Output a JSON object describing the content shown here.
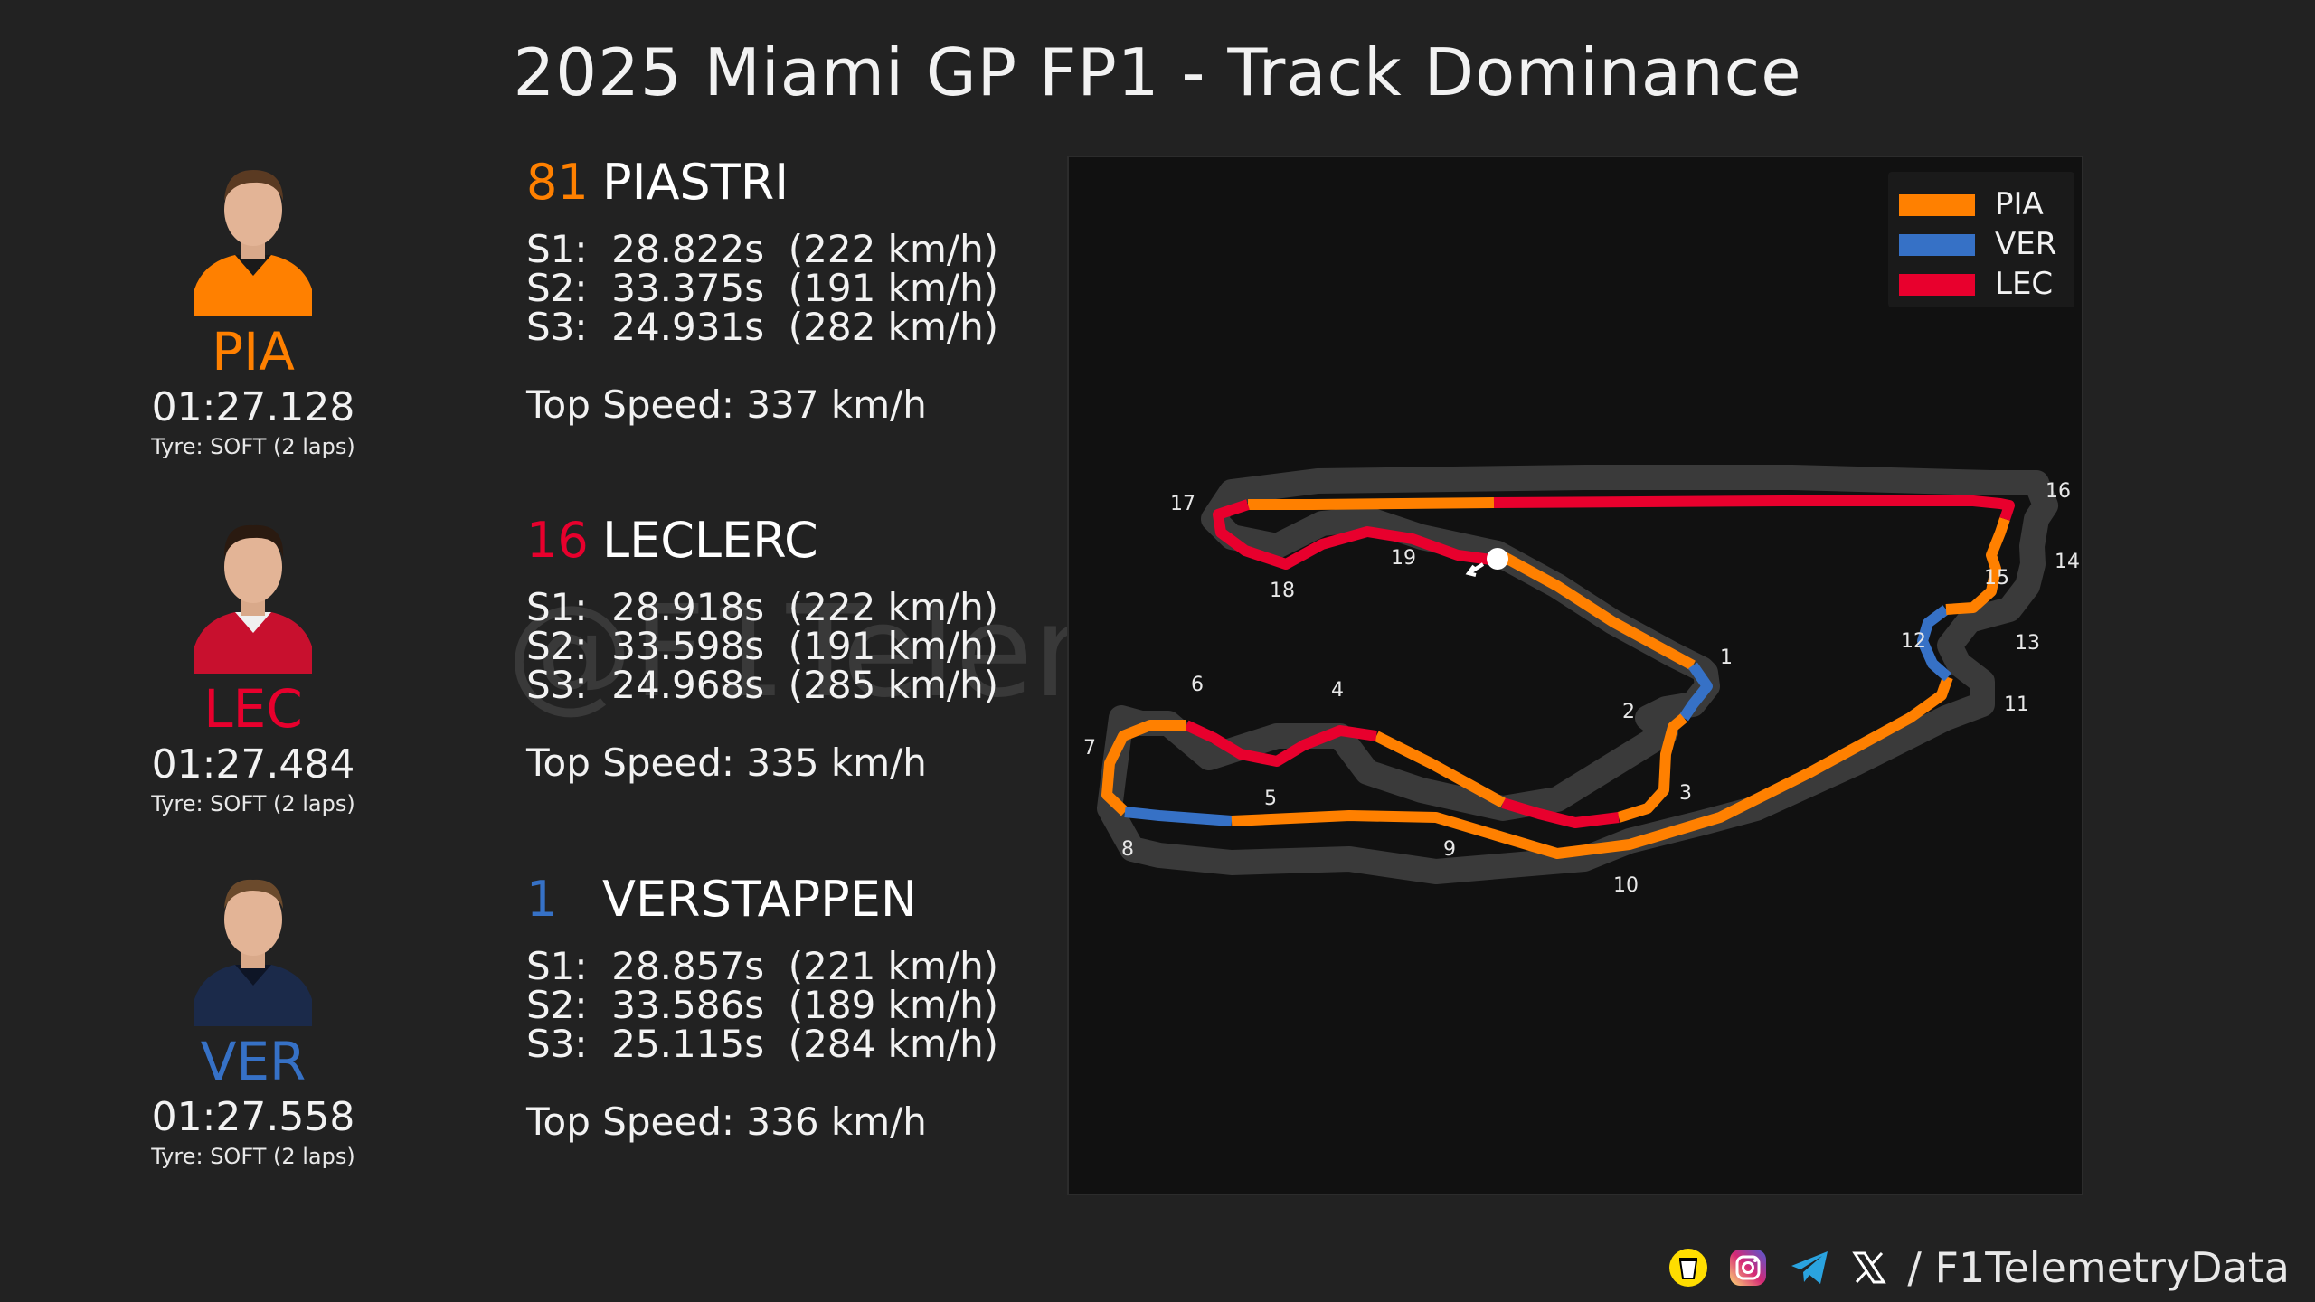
{
  "title": "2025 Miami GP FP1 - Track Dominance",
  "watermark": "@F1TelemetryData",
  "colors": {
    "PIA": "#ff8000",
    "VER": "#3671c6",
    "LEC": "#e8002d",
    "background": "#222222",
    "map_bg": "#111111"
  },
  "drivers": [
    {
      "abbr": "PIA",
      "number": "81",
      "name": "PIASTRI",
      "color": "#ff8000",
      "lap_time": "01:27.128",
      "tyre": "Tyre: SOFT (2 laps)",
      "sectors": [
        "S1:  28.822s  (222 km/h)",
        "S2:  33.375s  (191 km/h)",
        "S3:  24.931s  (282 km/h)"
      ],
      "top_speed": "Top Speed: 337 km/h"
    },
    {
      "abbr": "LEC",
      "number": "16",
      "name": "LECLERC",
      "color": "#e8002d",
      "lap_time": "01:27.484",
      "tyre": "Tyre: SOFT (2 laps)",
      "sectors": [
        "S1:  28.918s  (222 km/h)",
        "S2:  33.598s  (191 km/h)",
        "S3:  24.968s  (285 km/h)"
      ],
      "top_speed": "Top Speed: 335 km/h"
    },
    {
      "abbr": "VER",
      "number": "1",
      "name": "VERSTAPPEN",
      "color": "#3671c6",
      "lap_time": "01:27.558",
      "tyre": "Tyre: SOFT (2 laps)",
      "sectors": [
        "S1:  28.857s  (221 km/h)",
        "S2:  33.586s  (189 km/h)",
        "S3:  25.115s  (284 km/h)"
      ],
      "top_speed": "Top Speed: 336 km/h"
    }
  ],
  "legend": [
    {
      "label": "PIA",
      "color": "#ff8000"
    },
    {
      "label": "VER",
      "color": "#3671c6"
    },
    {
      "label": "LEC",
      "color": "#e8002d"
    }
  ],
  "corners": [
    "1",
    "2",
    "3",
    "4",
    "5",
    "6",
    "7",
    "8",
    "9",
    "10",
    "11",
    "12",
    "13",
    "14",
    "15",
    "16",
    "17",
    "18",
    "19"
  ],
  "footer": {
    "handle": "/ F1TelemetryData",
    "icons": [
      "buymeacoffee-icon",
      "instagram-icon",
      "telegram-icon",
      "x-icon"
    ]
  }
}
